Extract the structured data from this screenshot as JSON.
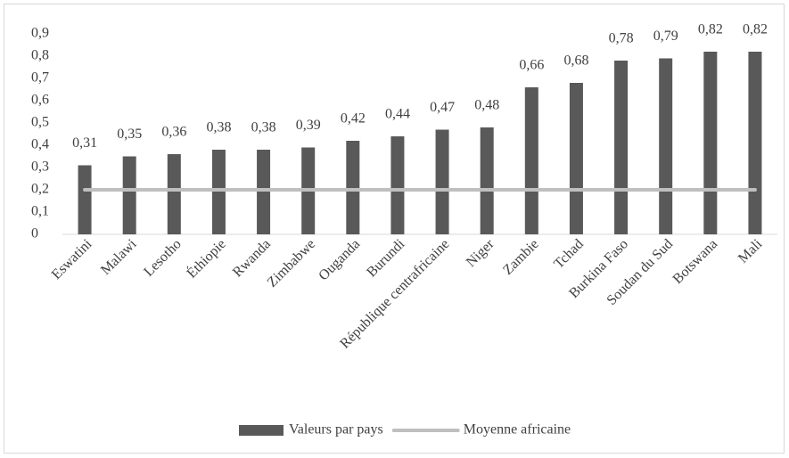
{
  "chart_data": {
    "type": "bar",
    "categories": [
      "Eswatini",
      "Malawi",
      "Lesotho",
      "Éthiopie",
      "Rwanda",
      "Zimbabwe",
      "Ouganda",
      "Burundi",
      "République centrafricaine",
      "Niger",
      "Zambie",
      "Tchad",
      "Burkina Faso",
      "Soudan du Sud",
      "Botswana",
      "Mali"
    ],
    "series": [
      {
        "name": "Valeurs par pays",
        "type": "bar",
        "color": "#595959",
        "values": [
          0.31,
          0.35,
          0.36,
          0.38,
          0.38,
          0.39,
          0.42,
          0.44,
          0.47,
          0.48,
          0.66,
          0.68,
          0.78,
          0.79,
          0.82,
          0.82
        ],
        "value_labels": [
          "0,31",
          "0,35",
          "0,36",
          "0,38",
          "0,38",
          "0,39",
          "0,42",
          "0,44",
          "0,47",
          "0,48",
          "0,66",
          "0,68",
          "0,78",
          "0,79",
          "0,82",
          "0,82"
        ]
      },
      {
        "name": "Moyenne africaine",
        "type": "line",
        "color": "#bfbfbf",
        "values": [
          0.2,
          0.2,
          0.2,
          0.2,
          0.2,
          0.2,
          0.2,
          0.2,
          0.2,
          0.2,
          0.2,
          0.2,
          0.2,
          0.2,
          0.2,
          0.2
        ]
      }
    ],
    "ylim": [
      0,
      0.9
    ],
    "yticks": [
      0,
      {
        "value": 0.1,
        "label": "0,1"
      },
      {
        "value": 0.2,
        "label": "0,2"
      },
      {
        "value": 0.3,
        "label": "0,3"
      },
      {
        "value": 0.4,
        "label": "0,4"
      },
      {
        "value": 0.5,
        "label": "0,5"
      },
      {
        "value": 0.6,
        "label": "0,6"
      },
      {
        "value": 0.7,
        "label": "0,7"
      },
      {
        "value": 0.8,
        "label": "0,8"
      },
      {
        "value": 0.9,
        "label": "0,9"
      }
    ],
    "grid": false,
    "legend": "bottom"
  }
}
